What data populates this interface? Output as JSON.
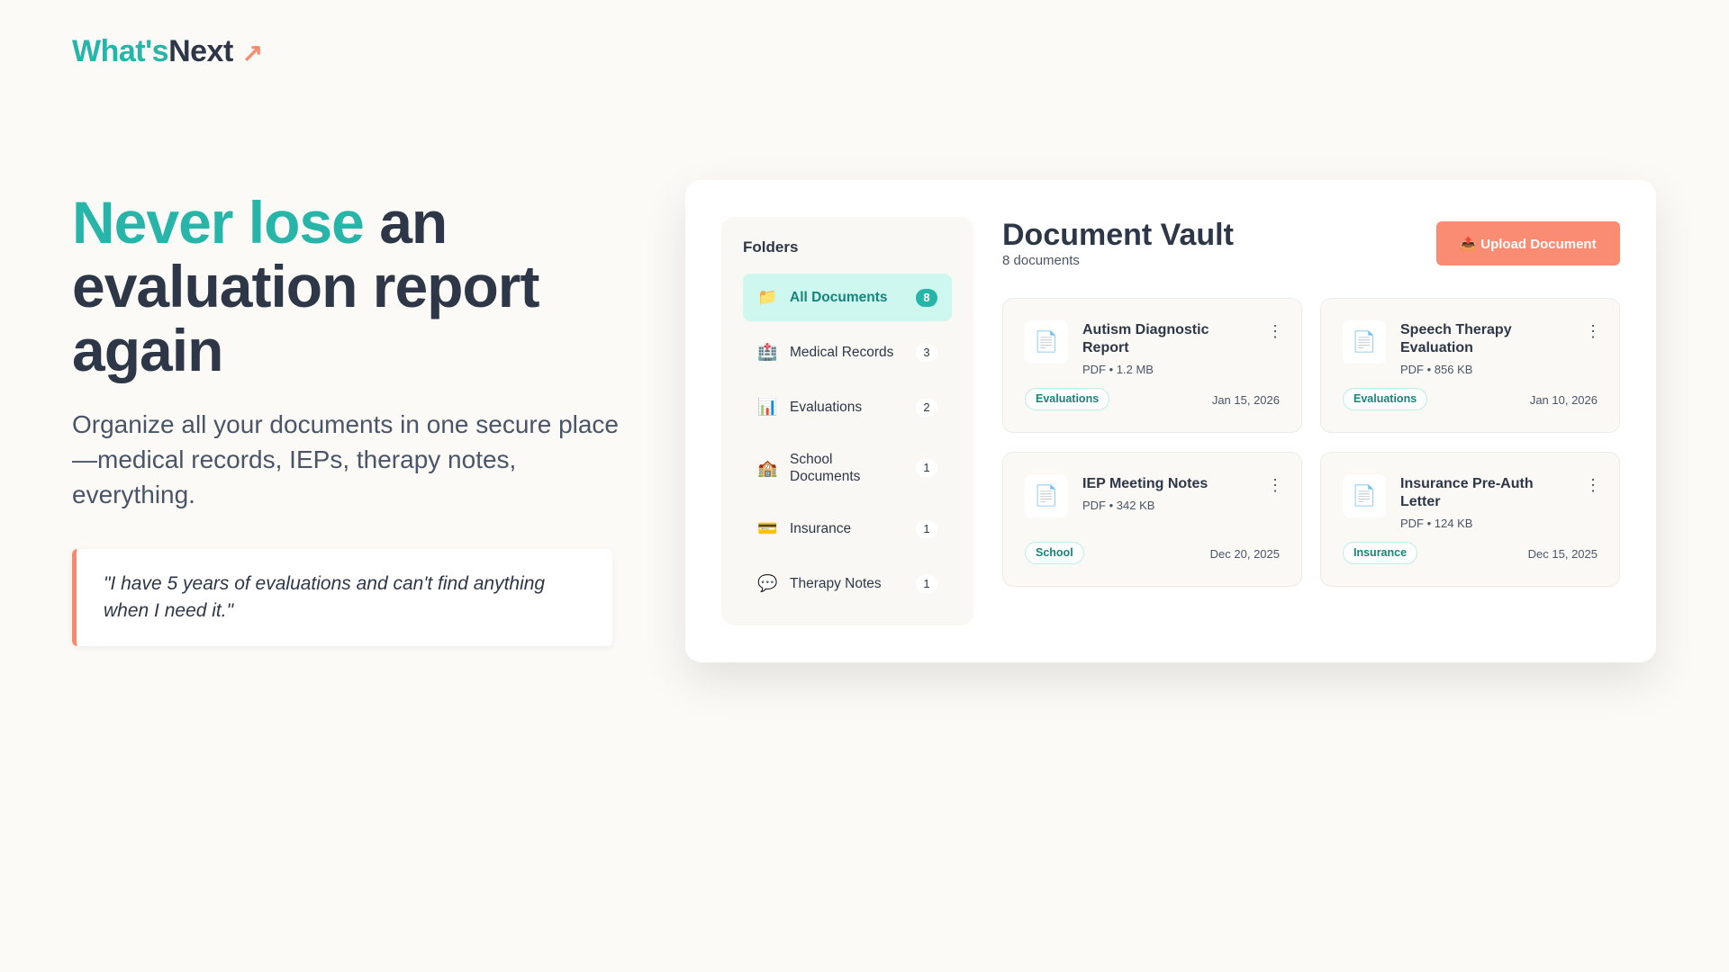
{
  "logo": {
    "part1": "What's",
    "part2": "Next",
    "arrow": "↗"
  },
  "hero": {
    "highlight": "Never lose",
    "rest": " an evaluation report again",
    "subtitle": "Organize all your documents in one secure place—medical records, IEPs, therapy notes, everything.",
    "quote": "\"I have 5 years of evaluations and can't find anything when I need it.\""
  },
  "colors": {
    "accent": "#26b5a8",
    "coral": "#f98c73",
    "dark": "#2d3748"
  },
  "vault": {
    "folders_title": "Folders",
    "folders": [
      {
        "icon": "📁",
        "label": "All Documents",
        "count": "8",
        "active": true
      },
      {
        "icon": "🏥",
        "label": "Medical Records",
        "count": "3"
      },
      {
        "icon": "📊",
        "label": "Evaluations",
        "count": "2"
      },
      {
        "icon": "🏫",
        "label": "School Documents",
        "count": "1"
      },
      {
        "icon": "💳",
        "label": "Insurance",
        "count": "1"
      },
      {
        "icon": "💬",
        "label": "Therapy Notes",
        "count": "1"
      }
    ],
    "title": "Document Vault",
    "count": "8 documents",
    "upload": {
      "icon": "📤",
      "label": "Upload Document"
    },
    "docs": [
      {
        "icon": "📄",
        "name": "Autism Diagnostic Report",
        "meta": "PDF • 1.2 MB",
        "tag": "Evaluations",
        "date": "Jan 15, 2026"
      },
      {
        "icon": "📄",
        "name": "Speech Therapy Evaluation",
        "meta": "PDF • 856 KB",
        "tag": "Evaluations",
        "date": "Jan 10, 2026"
      },
      {
        "icon": "📄",
        "name": "IEP Meeting Notes",
        "meta": "PDF • 342 KB",
        "tag": "School",
        "date": "Dec 20, 2025"
      },
      {
        "icon": "📄",
        "name": "Insurance Pre-Auth Letter",
        "meta": "PDF • 124 KB",
        "tag": "Insurance",
        "date": "Dec 15, 2025"
      }
    ],
    "more_icon": "⋮"
  }
}
